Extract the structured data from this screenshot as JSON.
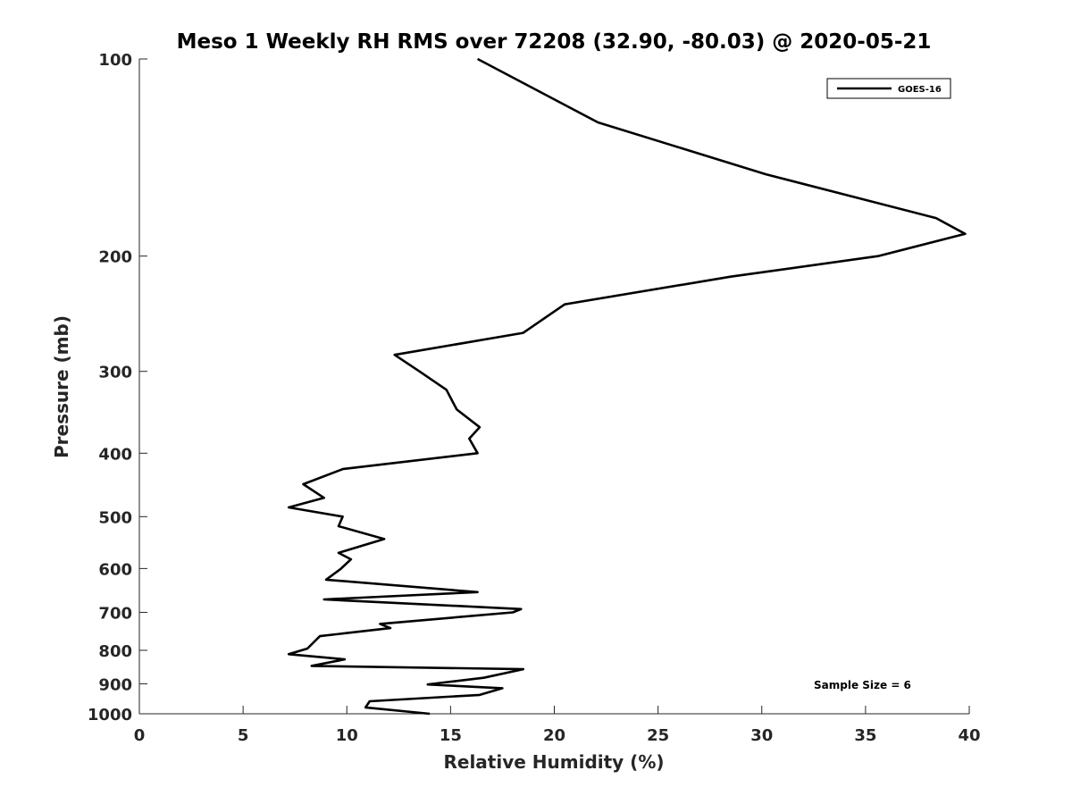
{
  "chart_data": {
    "type": "line",
    "title": "Meso 1 Weekly RH RMS over 72208 (32.90, -80.03) @ 2020-05-21",
    "xlabel": "Relative Humidity (%)",
    "ylabel": "Pressure (mb)",
    "xlim": [
      0,
      40
    ],
    "ylim": [
      100,
      1000
    ],
    "y_scale": "log",
    "y_reversed": true,
    "x_ticks": [
      0,
      5,
      10,
      15,
      20,
      25,
      30,
      35,
      40
    ],
    "y_ticks": [
      100,
      200,
      300,
      400,
      500,
      600,
      700,
      800,
      900,
      1000
    ],
    "grid": false,
    "legend_position": "top-right",
    "annotation": "Sample Size = 6",
    "series": [
      {
        "name": "GOES-16",
        "color": "#000000",
        "points": [
          [
            16.3,
            100
          ],
          [
            22.1,
            125
          ],
          [
            30.2,
            150
          ],
          [
            38.4,
            175
          ],
          [
            39.8,
            185
          ],
          [
            35.6,
            200
          ],
          [
            28.5,
            215
          ],
          [
            20.5,
            237
          ],
          [
            18.5,
            262
          ],
          [
            12.3,
            283
          ],
          [
            13.5,
            300
          ],
          [
            14.8,
            320
          ],
          [
            15.3,
            343
          ],
          [
            16.4,
            365
          ],
          [
            15.9,
            380
          ],
          [
            16.3,
            400
          ],
          [
            9.8,
            423
          ],
          [
            7.9,
            446
          ],
          [
            8.9,
            468
          ],
          [
            7.2,
            484
          ],
          [
            9.8,
            500
          ],
          [
            9.6,
            517
          ],
          [
            11.8,
            541
          ],
          [
            9.6,
            568
          ],
          [
            10.2,
            581
          ],
          [
            9.7,
            601
          ],
          [
            9.0,
            624
          ],
          [
            16.3,
            652
          ],
          [
            8.9,
            669
          ],
          [
            18.4,
            692
          ],
          [
            18.0,
            700
          ],
          [
            11.6,
            729
          ],
          [
            12.1,
            740
          ],
          [
            8.7,
            761
          ],
          [
            8.1,
            795
          ],
          [
            7.2,
            811
          ],
          [
            9.9,
            826
          ],
          [
            8.3,
            845
          ],
          [
            18.5,
            855
          ],
          [
            16.6,
            881
          ],
          [
            13.9,
            902
          ],
          [
            17.5,
            914
          ],
          [
            16.4,
            936
          ],
          [
            11.1,
            957
          ],
          [
            10.9,
            978
          ],
          [
            14.0,
            1000
          ]
        ]
      }
    ]
  }
}
